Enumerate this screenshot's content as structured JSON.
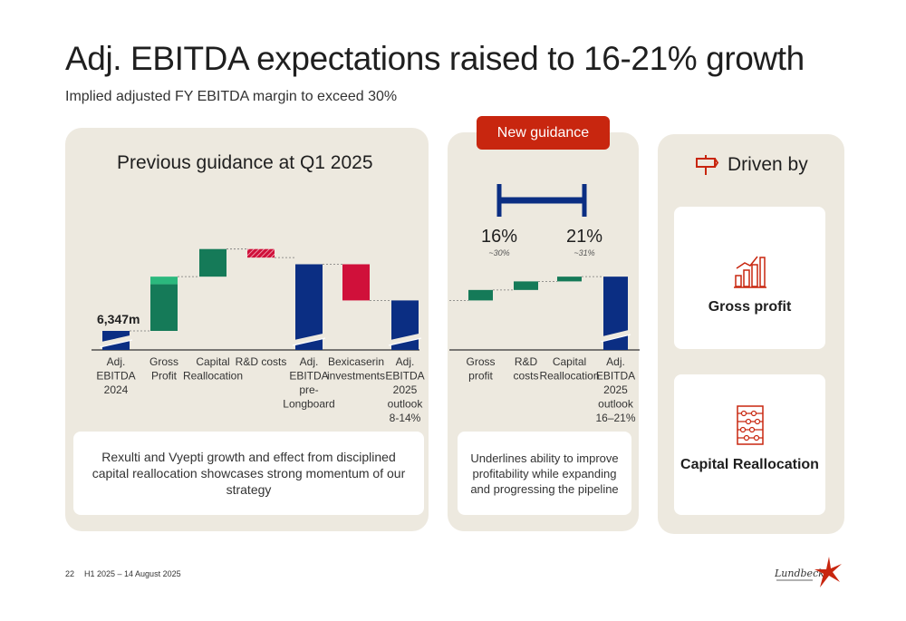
{
  "header": {
    "title": "Adj. EBITDA expectations raised to 16-21% growth",
    "subtitle": "Implied adjusted FY EBITDA margin to exceed 30%"
  },
  "left_panel": {
    "title": "Previous guidance at Q1 2025",
    "note": "Rexulti and Vyepti growth and effect from disciplined capital reallocation showcases strong momentum of our strategy"
  },
  "mid_panel": {
    "badge": "New guidance",
    "range_low": "16%",
    "range_low_sub": "~30%",
    "range_high": "21%",
    "range_high_sub": "~31%",
    "note": "Underlines ability to improve profitability while expanding and progressing the pipeline"
  },
  "right_panel": {
    "title": "Driven by",
    "drivers": [
      {
        "label": "Gross profit"
      },
      {
        "label": "Capital Reallocation"
      }
    ]
  },
  "footer": {
    "page": "22",
    "meta": "H1 2025 – 14 August 2025"
  },
  "colors": {
    "navy": "#0b2e83",
    "green": "#157a58",
    "green_light": "#2bb87d",
    "red": "#d0103a",
    "accent": "#c8260f",
    "panel": "#ede9df"
  },
  "chart_data": [
    {
      "type": "waterfall",
      "title": "Previous guidance at Q1 2025",
      "data_labels": [
        "6,347m"
      ],
      "categories": [
        [
          "Adj.",
          "EBITDA",
          "2024"
        ],
        [
          "Gross",
          "Profit"
        ],
        [
          "Capital",
          "Reallocation"
        ],
        [
          "R&D costs"
        ],
        [
          "Adj.",
          "EBITDA",
          "pre-",
          "Longboard"
        ],
        [
          "Bexicaserin",
          "investments"
        ],
        [
          "Adj.",
          "EBITDA",
          "2025",
          "outlook",
          "8-14%"
        ]
      ],
      "kinds": [
        "total",
        "increase",
        "increase",
        "decrease",
        "total",
        "decrease",
        "total"
      ],
      "values": [
        1.0,
        2.45,
        1.45,
        -0.45,
        4.5,
        -1.9,
        2.6
      ],
      "extra_increase_on_gross_profit": 0.4,
      "broken_axis_on_totals": true
    },
    {
      "type": "waterfall",
      "title": "New guidance",
      "categories": [
        [
          "Gross",
          "profit"
        ],
        [
          "R&D",
          "costs"
        ],
        [
          "Capital",
          "Reallocation"
        ],
        [
          "Adj.",
          "EBITDA",
          "2025",
          "outlook",
          "16–21%"
        ]
      ],
      "kinds": [
        "increase",
        "increase",
        "increase",
        "total"
      ],
      "start": 2.6,
      "values": [
        0.55,
        0.45,
        0.25,
        3.85
      ],
      "range_labels": [
        "16%",
        "21%"
      ],
      "range_sub_labels": [
        "~30%",
        "~31%"
      ]
    }
  ]
}
